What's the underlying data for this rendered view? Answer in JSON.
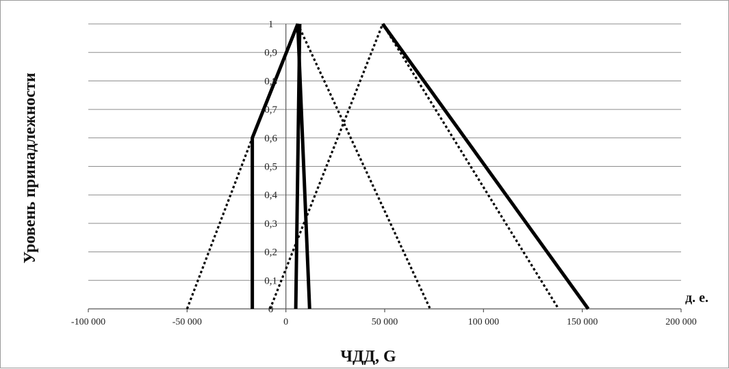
{
  "chart_data": {
    "type": "line",
    "xlabel": "ЧДД, G",
    "ylabel": "Уровень принадлежности",
    "x_unit_label": "д. е.",
    "xlim": [
      -100000,
      200000
    ],
    "ylim": [
      0,
      1
    ],
    "x_ticks": [
      -100000,
      -50000,
      0,
      50000,
      100000,
      150000,
      200000
    ],
    "x_tick_labels": [
      "-100 000",
      "-50 000",
      "0",
      "50 000",
      "100 000",
      "150 000",
      "200 000"
    ],
    "y_ticks": [
      0,
      0.1,
      0.2,
      0.3,
      0.4,
      0.5,
      0.6,
      0.7,
      0.8,
      0.9,
      1
    ],
    "y_tick_labels": [
      "0",
      "0,1",
      "0,2",
      "0,3",
      "0,4",
      "0,5",
      "0,6",
      "0,7",
      "0,8",
      "0,9",
      "1"
    ],
    "grid": true,
    "series": [
      {
        "style": "solid",
        "points": [
          [
            -17000,
            0
          ],
          [
            -17000,
            0.6
          ],
          [
            6000,
            1
          ],
          [
            12000,
            0
          ]
        ]
      },
      {
        "style": "solid",
        "points": [
          [
            5000,
            0
          ],
          [
            7000,
            1
          ]
        ]
      },
      {
        "style": "solid",
        "points": [
          [
            49000,
            1
          ],
          [
            153000,
            0
          ]
        ]
      },
      {
        "style": "dotted",
        "points": [
          [
            -50000,
            0
          ],
          [
            -17000,
            0.6
          ]
        ]
      },
      {
        "style": "dotted",
        "points": [
          [
            6000,
            1
          ],
          [
            73000,
            0
          ]
        ]
      },
      {
        "style": "dotted",
        "points": [
          [
            -8000,
            0
          ],
          [
            49000,
            1
          ]
        ]
      },
      {
        "style": "dotted",
        "points": [
          [
            49000,
            1
          ],
          [
            138000,
            0
          ]
        ]
      }
    ]
  }
}
